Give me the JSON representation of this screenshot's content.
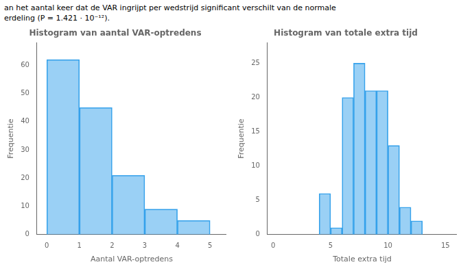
{
  "annotations": [
    "an het aantal keer dat de VAR ingrijpt per wedstrijd significant verschilt van de normale",
    "erdeling (P = 1.421 · 10⁻¹²)."
  ],
  "chart_data": [
    {
      "type": "histogram",
      "title": "Histogram van aantal VAR-optredens",
      "xlabel": "Aantal VAR-optredens",
      "ylabel": "Frequentie",
      "bins": [
        0,
        1,
        2,
        3,
        4,
        5
      ],
      "values": [
        62,
        45,
        21,
        9,
        5
      ],
      "xlim": [
        -0.3,
        5.5
      ],
      "ylim": [
        0,
        68
      ],
      "xticks": [
        0,
        1,
        2,
        3,
        4,
        5
      ],
      "yticks": [
        0,
        10,
        20,
        30,
        40,
        50,
        60
      ],
      "grid": false
    },
    {
      "type": "histogram",
      "title": "Histogram van totale extra tijd",
      "xlabel": "Totale extra tijd",
      "ylabel": "Frequentie",
      "bins": [
        4,
        5,
        6,
        7,
        8,
        9,
        10,
        11,
        12,
        13
      ],
      "values": [
        6,
        1,
        20,
        25,
        21,
        21,
        13,
        4,
        2
      ],
      "xlim": [
        -0.5,
        16
      ],
      "ylim": [
        0,
        28
      ],
      "xticks": [
        0,
        5,
        10,
        15
      ],
      "yticks": [
        0,
        5,
        10,
        15,
        20,
        25
      ],
      "grid": false
    }
  ]
}
